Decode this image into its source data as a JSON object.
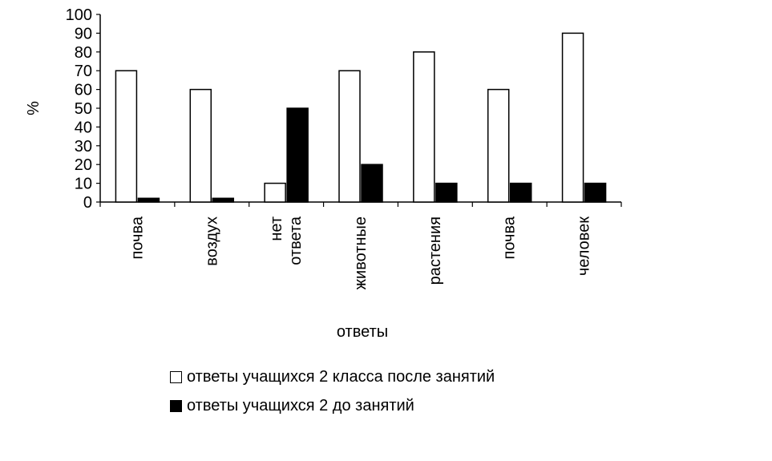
{
  "chart_data": {
    "type": "bar",
    "title": "",
    "xlabel": "ответы",
    "ylabel": "%",
    "ylim": [
      0,
      100
    ],
    "yticks": [
      "0",
      "10",
      "20",
      "30",
      "40",
      "50",
      "60",
      "70",
      "80",
      "90",
      "100"
    ],
    "categories": [
      [
        "почва"
      ],
      [
        "воздух"
      ],
      [
        "нет",
        "ответа"
      ],
      [
        "животные"
      ],
      [
        "растения"
      ],
      [
        "почва"
      ],
      [
        "человек"
      ]
    ],
    "series": [
      {
        "name": "ответы учащихся 2 класса после занятий",
        "color": "#ffffff",
        "values": [
          70,
          60,
          10,
          70,
          80,
          60,
          90
        ]
      },
      {
        "name": "ответы учащихся 2 до занятий",
        "color": "#000000",
        "values": [
          2,
          2,
          50,
          20,
          10,
          10,
          10
        ]
      }
    ],
    "grid": false,
    "legend_position": "bottom"
  }
}
